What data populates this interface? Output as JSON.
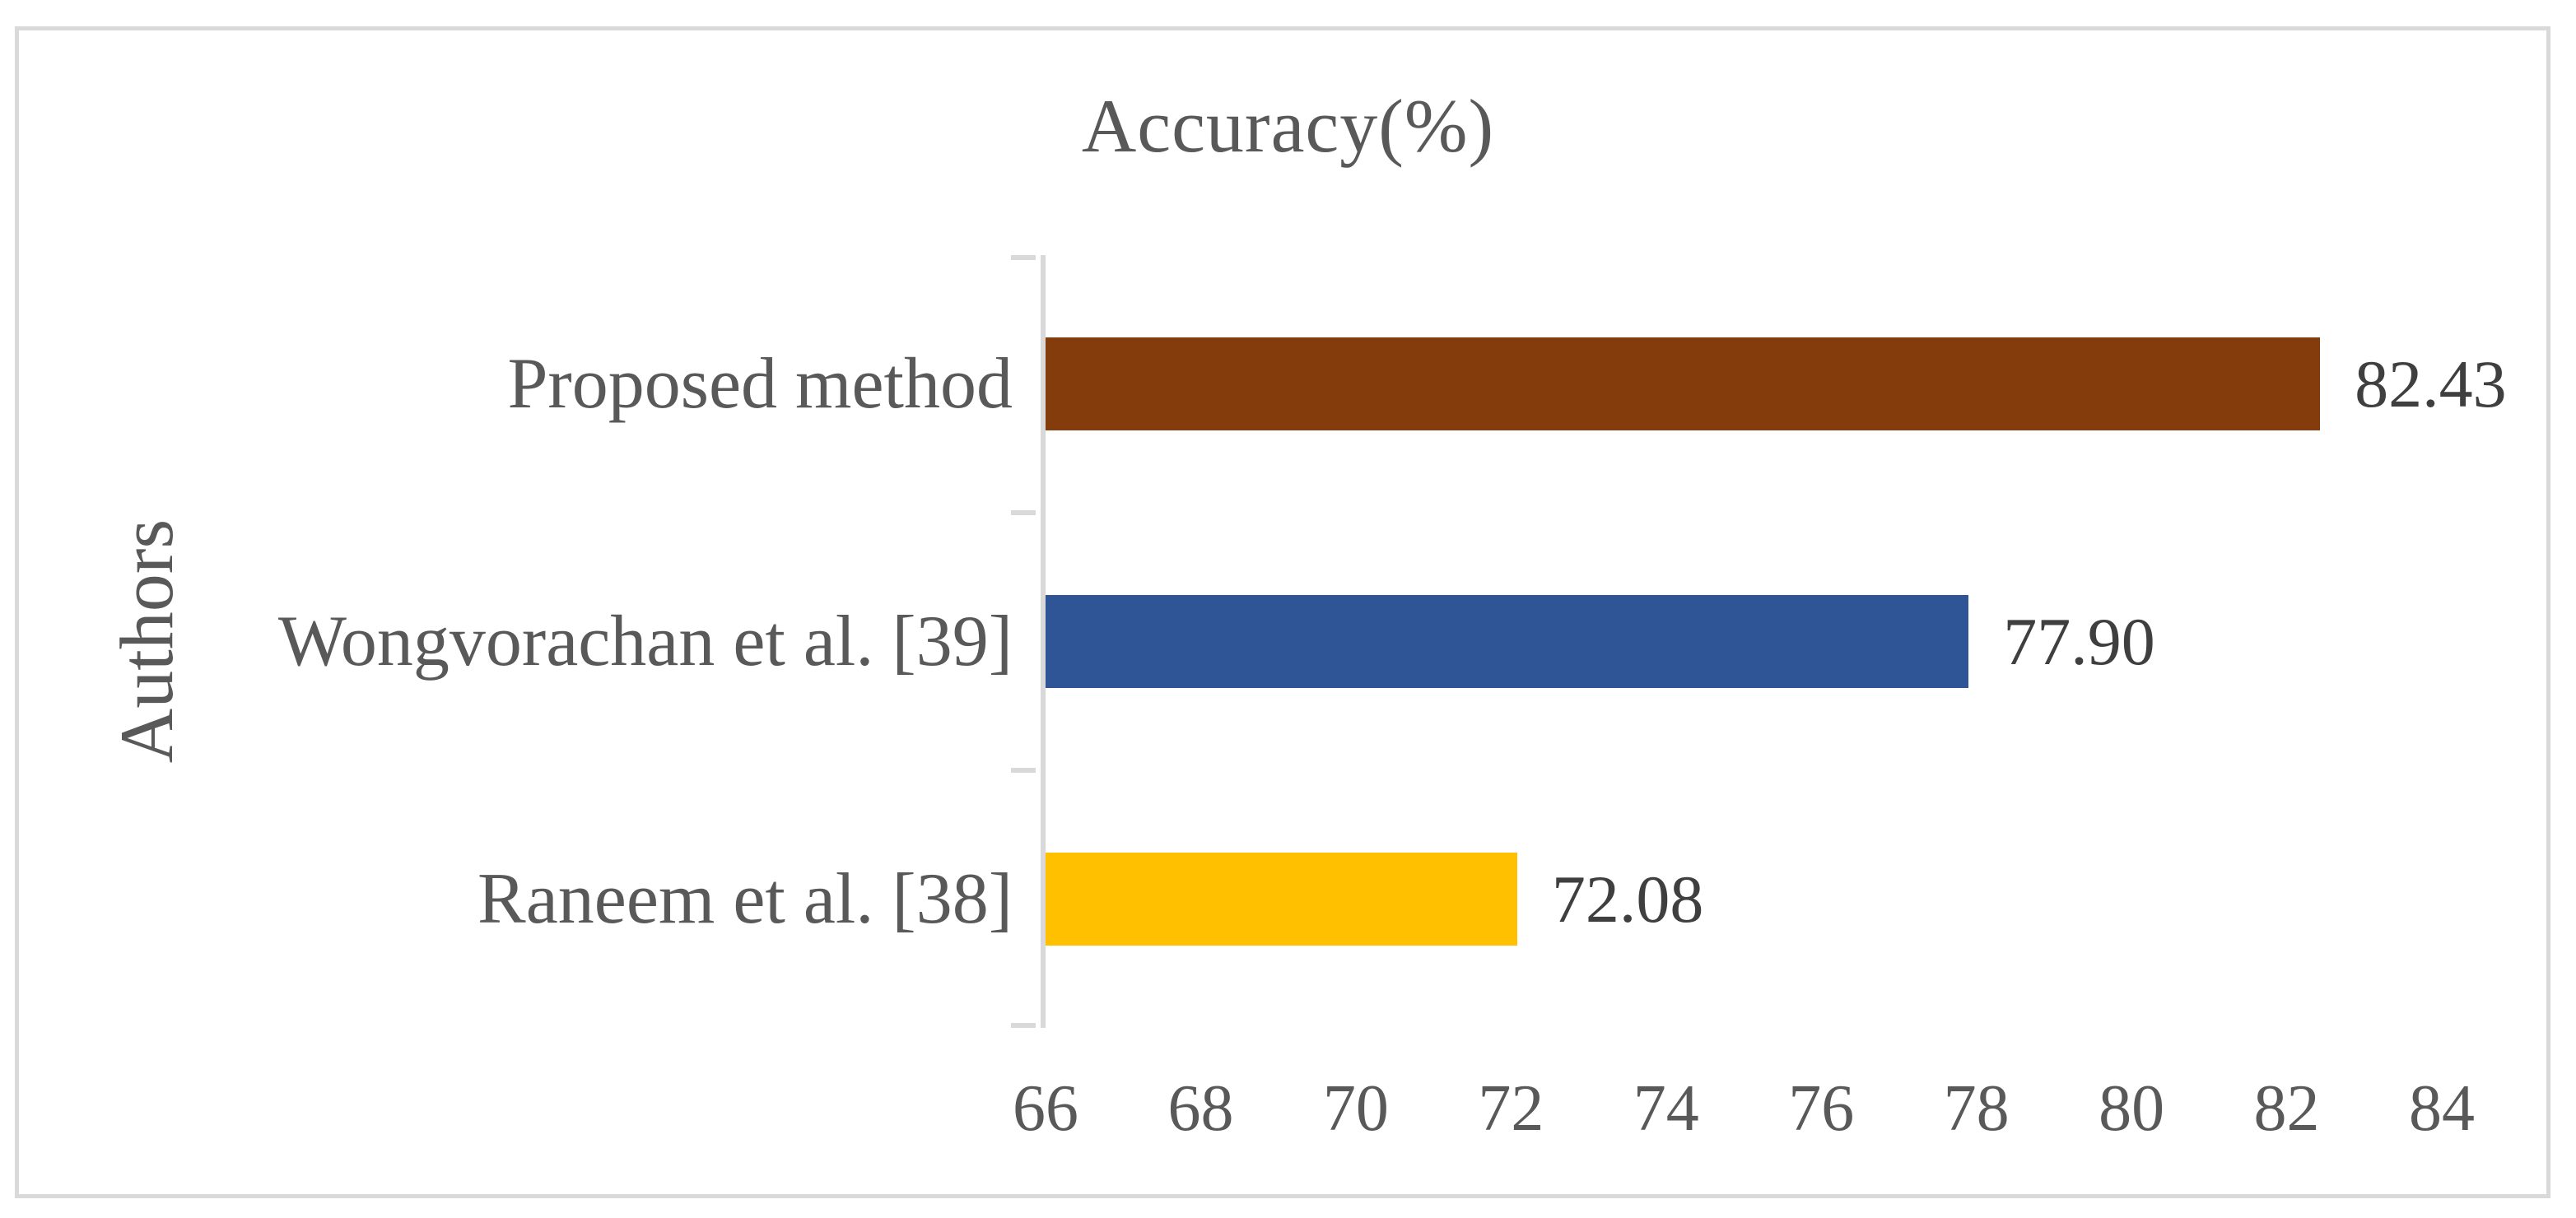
{
  "chart_data": {
    "type": "bar",
    "orientation": "horizontal",
    "title": "Accuracy(%)",
    "xlabel": "",
    "ylabel": "Authors",
    "categories": [
      "Proposed method",
      "Wongvorachan et al. [39]",
      "Raneem et al. [38]"
    ],
    "values": [
      82.43,
      77.9,
      72.08
    ],
    "value_labels": [
      "82.43",
      "77.90",
      "72.08"
    ],
    "bar_colors": [
      "#843C0C",
      "#2F5597",
      "#FFC000"
    ],
    "xlim": [
      66,
      84
    ],
    "x_ticks": [
      "66",
      "68",
      "70",
      "72",
      "74",
      "76",
      "78",
      "80",
      "82",
      "84"
    ],
    "grid": false,
    "legend": "none",
    "axis_color": "#D9D9D9",
    "title_color": "#595959",
    "tick_label_color": "#595959",
    "value_label_color": "#3F3F3F",
    "frame_color": "#D9D9D9",
    "background_color": "#FFFFFF"
  }
}
